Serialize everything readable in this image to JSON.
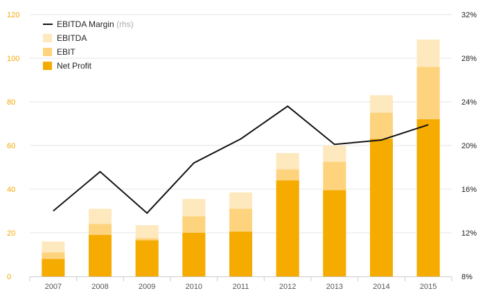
{
  "chart_data": {
    "type": "bar",
    "stacked": true,
    "categories": [
      "2007",
      "2008",
      "2009",
      "2010",
      "2011",
      "2012",
      "2013",
      "2014",
      "2015"
    ],
    "series": [
      {
        "name": "Net Profit",
        "color": "#f5ab00",
        "values": [
          8,
          19,
          16.5,
          20,
          20.5,
          44,
          39.5,
          63,
          72
        ]
      },
      {
        "name": "EBIT",
        "color": "#fdd37d",
        "values": [
          11,
          24,
          17.5,
          27.5,
          31,
          49,
          52.5,
          75,
          96
        ]
      },
      {
        "name": "EBITDA",
        "color": "#fee8bd",
        "values": [
          16,
          31,
          23.5,
          35.5,
          38.5,
          56.5,
          60,
          83,
          108.5
        ]
      }
    ],
    "line_series": {
      "name": "EBITDA Margin",
      "note": "(rhs)",
      "color": "#111111",
      "axis": "right",
      "values": [
        14,
        17.6,
        13.8,
        18.4,
        20.6,
        23.6,
        20.1,
        20.5,
        21.9
      ]
    },
    "left_axis": {
      "ylim": [
        0,
        120
      ],
      "ticks": [
        "0",
        "20",
        "40",
        "60",
        "80",
        "100",
        "120"
      ],
      "color": "#f5a800"
    },
    "right_axis": {
      "ylim": [
        8,
        32
      ],
      "ticks": [
        "8%",
        "12%",
        "16%",
        "20%",
        "24%",
        "28%",
        "32%"
      ],
      "color": "#222222"
    },
    "grid": true,
    "legend_position": "top-left",
    "legend": [
      {
        "label": "EBITDA Margin",
        "note": "(rhs)",
        "kind": "line",
        "color": "#111111"
      },
      {
        "label": "EBITDA",
        "kind": "box",
        "color": "#fee8bd"
      },
      {
        "label": "EBIT",
        "kind": "box",
        "color": "#fdd37d"
      },
      {
        "label": "Net Profit",
        "kind": "box",
        "color": "#f5ab00"
      }
    ]
  }
}
